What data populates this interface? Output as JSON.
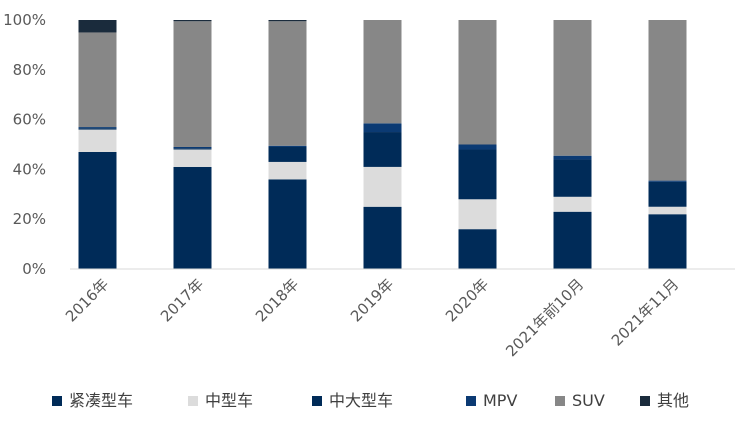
{
  "chart_data": {
    "type": "bar",
    "stacked": true,
    "categories": [
      "2016年",
      "2017年",
      "2018年",
      "2019年",
      "2020年",
      "2021年前10月",
      "2021年11月"
    ],
    "series": [
      {
        "name": "紧凑型车",
        "color": "#002B58",
        "values": [
          47,
          41,
          36,
          25,
          16,
          23,
          22
        ]
      },
      {
        "name": "中型车",
        "color": "#DCDCDC",
        "values": [
          9,
          7,
          7,
          16,
          12,
          6,
          3
        ]
      },
      {
        "name": "中大型车",
        "color": "#002B58",
        "values": [
          0.5,
          0.5,
          6,
          14,
          20,
          15,
          10
        ]
      },
      {
        "name": "MPV",
        "color": "#0B3A73",
        "values": [
          0.5,
          0.5,
          0.5,
          3.5,
          2,
          1.5,
          0.5
        ]
      },
      {
        "name": "SUV",
        "color": "#878787",
        "values": [
          38,
          50.5,
          50,
          41.5,
          50,
          54.5,
          64.5
        ]
      },
      {
        "name": "其他",
        "color": "#1A2B3C",
        "values": [
          5,
          0.5,
          0.5,
          0,
          0,
          0,
          0
        ]
      }
    ],
    "y_ticks": [
      "0%",
      "20%",
      "40%",
      "60%",
      "80%",
      "100%"
    ],
    "ylim": [
      0,
      100
    ],
    "grid": false,
    "legend_position": "bottom",
    "title": "",
    "xlabel": "",
    "ylabel": ""
  }
}
